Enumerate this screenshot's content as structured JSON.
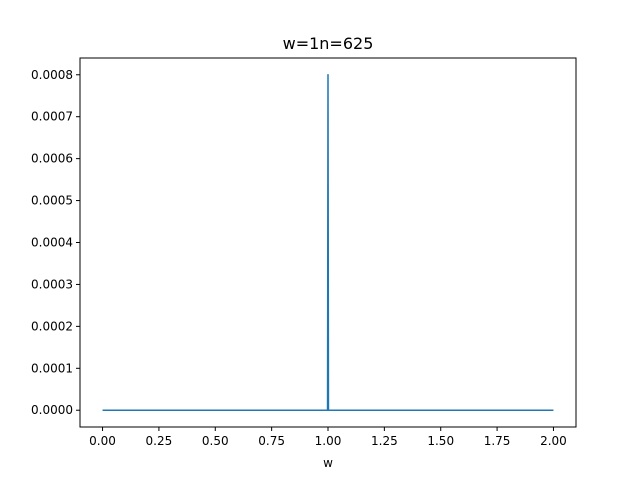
{
  "chart_data": {
    "type": "line",
    "title": "w=1n=625",
    "xlabel": "w",
    "ylabel": "",
    "xlim": [
      -0.1,
      2.1
    ],
    "ylim": [
      -4e-05,
      0.00084
    ],
    "grid": false,
    "x_ticks": [
      0.0,
      0.25,
      0.5,
      0.75,
      1.0,
      1.25,
      1.5,
      1.75,
      2.0
    ],
    "x_tick_labels": [
      "0.00",
      "0.25",
      "0.50",
      "0.75",
      "1.00",
      "1.25",
      "1.50",
      "1.75",
      "2.00"
    ],
    "y_ticks": [
      0.0,
      0.0001,
      0.0002,
      0.0003,
      0.0004,
      0.0005,
      0.0006,
      0.0007,
      0.0008
    ],
    "y_tick_labels": [
      "0.0000",
      "0.0001",
      "0.0002",
      "0.0003",
      "0.0004",
      "0.0005",
      "0.0006",
      "0.0007",
      "0.0008"
    ],
    "series": [
      {
        "color": "#1f77b4",
        "x": [
          0.0,
          0.996,
          0.998,
          1.0,
          1.002,
          1.004,
          2.0
        ],
        "y": [
          0.0,
          0.0,
          0.0,
          0.0008,
          0.0,
          0.0,
          0.0
        ]
      }
    ]
  }
}
